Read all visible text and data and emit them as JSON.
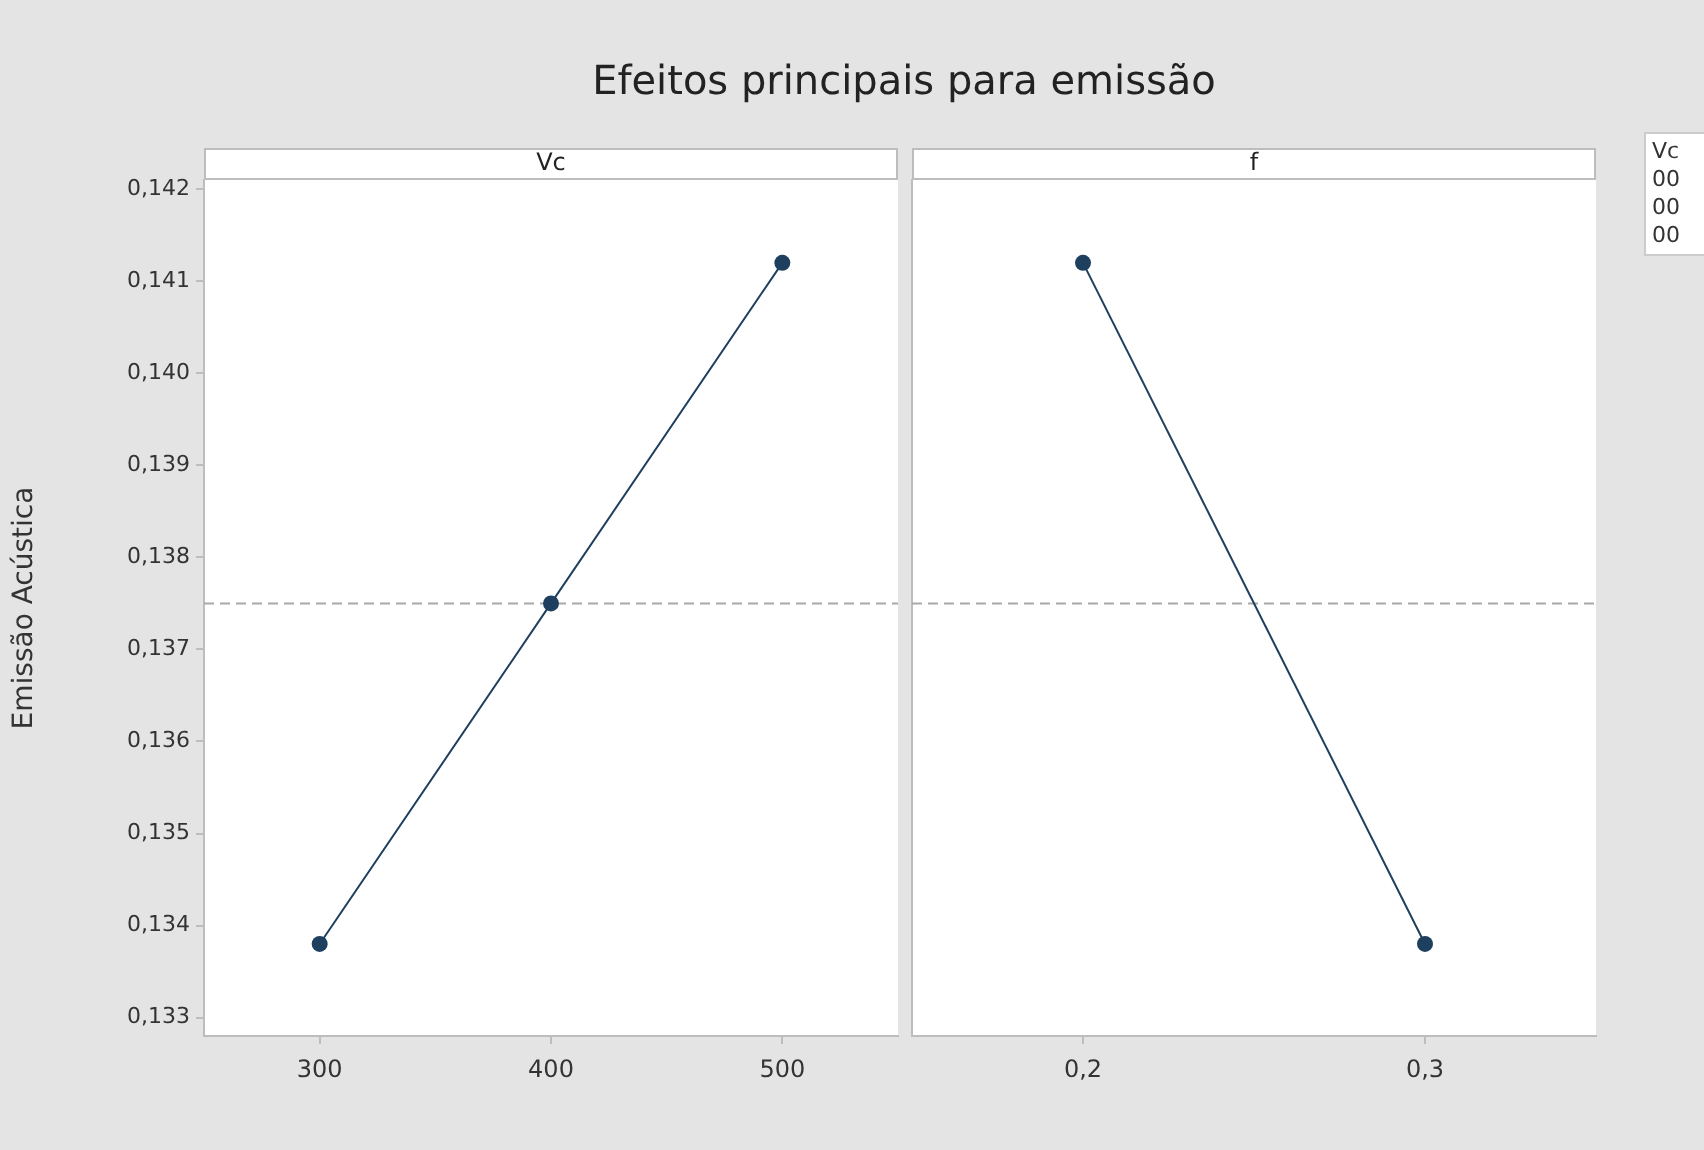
{
  "chart_data": [
    {
      "type": "line",
      "title": "Efeitos principais para emissão",
      "subtitle": "Vc",
      "ylabel": "Emissão Acústica",
      "categories": [
        "300",
        "400",
        "500"
      ],
      "series": [
        {
          "color": "#1f3f5f",
          "values": [
            0.1338,
            0.1375,
            0.1412
          ]
        }
      ],
      "ylim": [
        0.1328,
        0.1421
      ],
      "yticks": [
        {
          "value": 0.133,
          "label": "0,133"
        },
        {
          "value": 0.134,
          "label": "0,134"
        },
        {
          "value": 0.135,
          "label": "0,135"
        },
        {
          "value": 0.136,
          "label": "0,136"
        },
        {
          "value": 0.137,
          "label": "0,137"
        },
        {
          "value": 0.138,
          "label": "0,138"
        },
        {
          "value": 0.139,
          "label": "0,139"
        },
        {
          "value": 0.14,
          "label": "0,140"
        },
        {
          "value": 0.141,
          "label": "0,141"
        },
        {
          "value": 0.142,
          "label": "0,142"
        }
      ],
      "ref_lines": [
        {
          "axis": "y",
          "value": 0.1375,
          "color": "#a8a8a8",
          "line_style": "dashed"
        }
      ],
      "marker": "circle",
      "line_style": "solid",
      "grid": false,
      "legend": false
    },
    {
      "type": "line",
      "subtitle": "f",
      "categories": [
        "0,2",
        "0,3"
      ],
      "series": [
        {
          "color": "#1f3f5f",
          "values": [
            0.1412,
            0.1338
          ]
        }
      ],
      "ylim": [
        0.1328,
        0.1421
      ],
      "tick_labels": "x",
      "ref_lines": [
        {
          "axis": "y",
          "value": 0.1375,
          "color": "#a8a8a8",
          "line_style": "dashed"
        }
      ],
      "annotations": [
        "Vc\n00\n00\n00"
      ],
      "marker": "circle",
      "line_style": "solid",
      "grid": false,
      "legend": false
    }
  ]
}
